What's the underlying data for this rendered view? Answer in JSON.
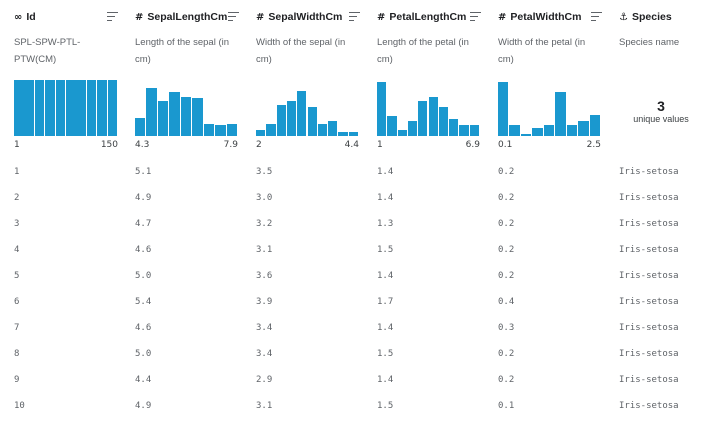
{
  "columns": [
    {
      "key": "id",
      "type_icon": "∞",
      "name": "Id",
      "description": "SPL-SPW-PTL-PTW(CM)",
      "range": {
        "min": "1",
        "max": "150"
      },
      "hist": [
        1,
        1,
        1,
        1,
        1,
        1,
        1,
        1,
        1,
        1
      ]
    },
    {
      "key": "sl",
      "type_icon": "#",
      "name": "SepalLengthCm",
      "description": "Length of the sepal (in cm)",
      "range": {
        "min": "4.3",
        "max": "7.9"
      },
      "hist": [
        0.33,
        0.85,
        0.63,
        0.78,
        0.7,
        0.67,
        0.22,
        0.19,
        0.22
      ]
    },
    {
      "key": "sw",
      "type_icon": "#",
      "name": "SepalWidthCm",
      "description": "Width of the sepal (in cm)",
      "range": {
        "min": "2",
        "max": "4.4"
      },
      "hist": [
        0.11,
        0.22,
        0.56,
        0.63,
        0.81,
        0.52,
        0.22,
        0.26,
        0.07,
        0.07
      ]
    },
    {
      "key": "pl",
      "type_icon": "#",
      "name": "PetalLengthCm",
      "description": "Length of the petal (in cm)",
      "range": {
        "min": "1",
        "max": "6.9"
      },
      "hist": [
        0.96,
        0.35,
        0.11,
        0.26,
        0.63,
        0.7,
        0.52,
        0.3,
        0.19,
        0.19
      ]
    },
    {
      "key": "pw",
      "type_icon": "#",
      "name": "PetalWidthCm",
      "description": "Width of the petal (in cm)",
      "range": {
        "min": "0.1",
        "max": "2.5"
      },
      "hist": [
        0.96,
        0.19,
        0.04,
        0.15,
        0.19,
        0.78,
        0.19,
        0.26,
        0.37
      ]
    },
    {
      "key": "sp",
      "type_icon": "⚓",
      "name": "Species",
      "description": "Species name",
      "unique": {
        "count": "3",
        "label": "unique values"
      }
    }
  ],
  "rows": [
    [
      "1",
      "5.1",
      "3.5",
      "1.4",
      "0.2",
      "Iris-setosa"
    ],
    [
      "2",
      "4.9",
      "3.0",
      "1.4",
      "0.2",
      "Iris-setosa"
    ],
    [
      "3",
      "4.7",
      "3.2",
      "1.3",
      "0.2",
      "Iris-setosa"
    ],
    [
      "4",
      "4.6",
      "3.1",
      "1.5",
      "0.2",
      "Iris-setosa"
    ],
    [
      "5",
      "5.0",
      "3.6",
      "1.4",
      "0.2",
      "Iris-setosa"
    ],
    [
      "6",
      "5.4",
      "3.9",
      "1.7",
      "0.4",
      "Iris-setosa"
    ],
    [
      "7",
      "4.6",
      "3.4",
      "1.4",
      "0.3",
      "Iris-setosa"
    ],
    [
      "8",
      "5.0",
      "3.4",
      "1.5",
      "0.2",
      "Iris-setosa"
    ],
    [
      "9",
      "4.4",
      "2.9",
      "1.4",
      "0.2",
      "Iris-setosa"
    ],
    [
      "10",
      "4.9",
      "3.1",
      "1.5",
      "0.1",
      "Iris-setosa"
    ]
  ],
  "colors": {
    "histogram": "#1a98cf"
  },
  "icons": {
    "sort": "sort-lines-icon",
    "numeric": "hash-icon",
    "id": "infinity-icon",
    "categorical": "category-icon"
  }
}
